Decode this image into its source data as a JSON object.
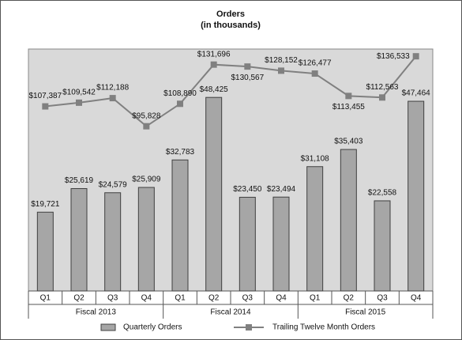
{
  "chart_data": {
    "type": "bar",
    "title": "Orders",
    "subtitle": "(in thousands)",
    "categories": [
      "Q1",
      "Q2",
      "Q3",
      "Q4",
      "Q1",
      "Q2",
      "Q3",
      "Q4",
      "Q1",
      "Q2",
      "Q3",
      "Q4"
    ],
    "groups": [
      "Fiscal 2013",
      "Fiscal 2014",
      "Fiscal 2015"
    ],
    "series": [
      {
        "name": "Quarterly Orders",
        "type": "bar",
        "color": "#a6a6a6",
        "values": [
          19721,
          25619,
          24579,
          25909,
          32783,
          48425,
          23450,
          23494,
          31108,
          35403,
          22558,
          47464
        ],
        "value_labels": [
          "$19,721",
          "$25,619",
          "$24,579",
          "$25,909",
          "$32,783",
          "$48,425",
          "$23,450",
          "$23,494",
          "$31,108",
          "$35,403",
          "$22,558",
          "$47,464"
        ]
      },
      {
        "name": "Trailing Twelve Month Orders",
        "type": "line",
        "color": "#808080",
        "values": [
          107387,
          109542,
          112188,
          95828,
          108890,
          131696,
          130567,
          128152,
          126477,
          113455,
          112563,
          136533
        ],
        "value_labels": [
          "$107,387",
          "$109,542",
          "$112,188",
          "$95,828",
          "$108,890",
          "$131,696",
          "$130,567",
          "$128,152",
          "$126,477",
          "$113,455",
          "$112,563",
          "$136,533"
        ]
      }
    ]
  }
}
